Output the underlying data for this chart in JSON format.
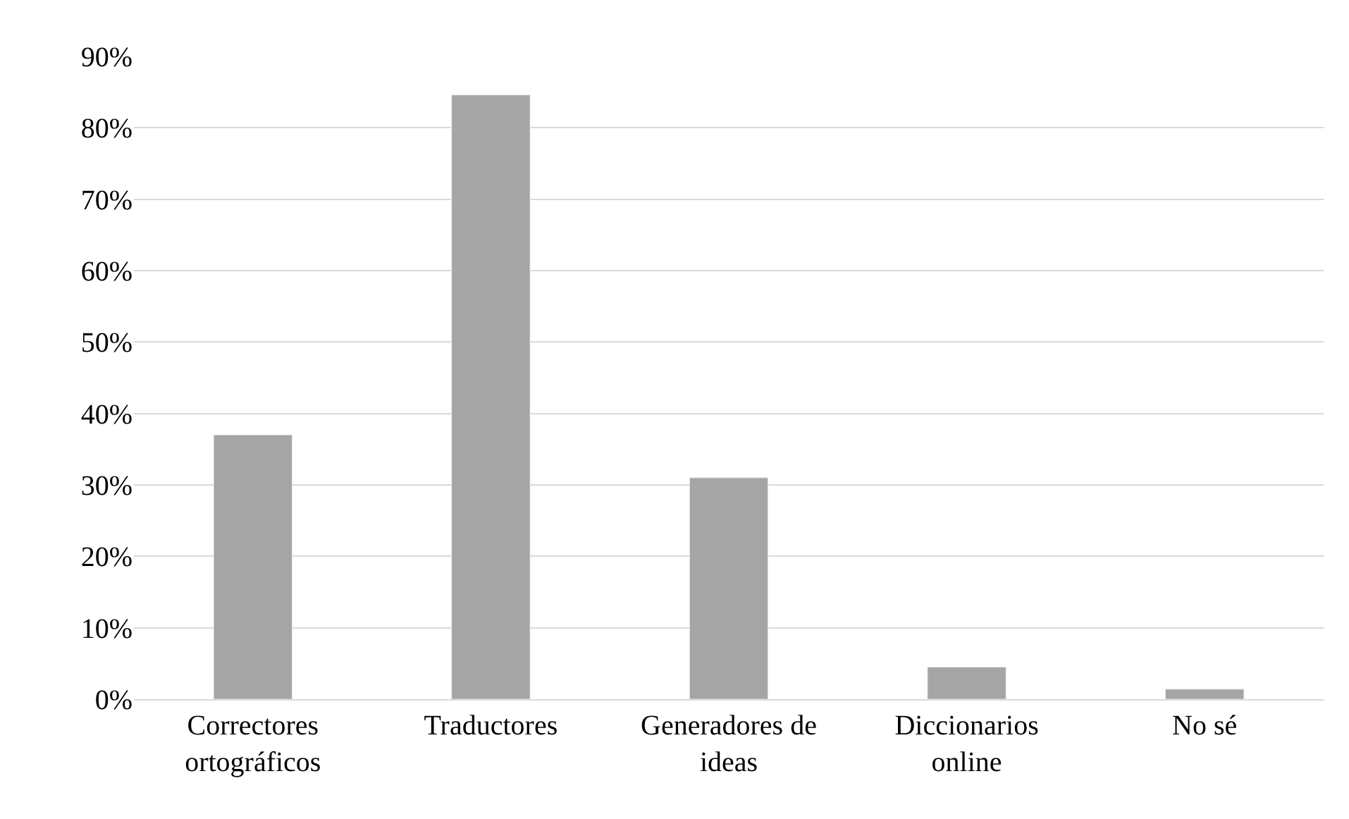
{
  "chart_data": {
    "type": "bar",
    "categories": [
      "Correctores ortográficos",
      "Traductores",
      "Generadores de ideas",
      "Diccionarios online",
      "No sé"
    ],
    "values": [
      37,
      84.6,
      31,
      4.5,
      1.4
    ],
    "color": "#a5a5a5",
    "ylim": [
      0,
      90
    ],
    "yticks": [
      {
        "value": 0,
        "label": "0%"
      },
      {
        "value": 10,
        "label": "10%"
      },
      {
        "value": 20,
        "label": "20%"
      },
      {
        "value": 30,
        "label": "30%"
      },
      {
        "value": 40,
        "label": "40%"
      },
      {
        "value": 50,
        "label": "50%"
      },
      {
        "value": 60,
        "label": "60%"
      },
      {
        "value": 70,
        "label": "70%"
      },
      {
        "value": 80,
        "label": "80%"
      },
      {
        "value": 90,
        "label": "90%"
      }
    ],
    "grid": "y",
    "legend": false
  }
}
